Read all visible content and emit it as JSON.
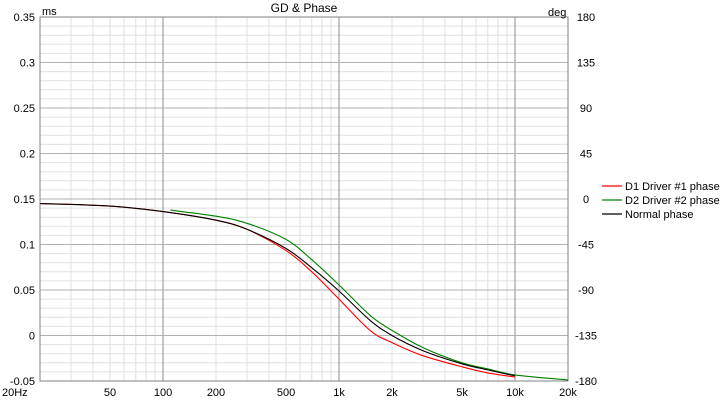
{
  "chart_data": {
    "type": "line",
    "title": "GD & Phase",
    "x_scale": "log",
    "xlim": [
      20,
      20000
    ],
    "x_ticks": [
      {
        "value": 20,
        "label": "20Hz"
      },
      {
        "value": 50,
        "label": "50"
      },
      {
        "value": 100,
        "label": "100"
      },
      {
        "value": 200,
        "label": "200"
      },
      {
        "value": 500,
        "label": "500"
      },
      {
        "value": 1000,
        "label": "1k"
      },
      {
        "value": 2000,
        "label": "2k"
      },
      {
        "value": 5000,
        "label": "5k"
      },
      {
        "value": 10000,
        "label": "10k"
      },
      {
        "value": 20000,
        "label": "20k"
      }
    ],
    "left_axis": {
      "unit": "ms",
      "ylim": [
        -0.05,
        0.35
      ],
      "ticks": [
        -0.05,
        0,
        0.05,
        0.1,
        0.15,
        0.2,
        0.25,
        0.3,
        0.35
      ],
      "tick_labels": [
        "-0.05",
        "0",
        "0.05",
        "0.1",
        "0.15",
        "0.2",
        "0.25",
        "0.3",
        "0.35"
      ]
    },
    "right_axis": {
      "unit": "deg",
      "ylim": [
        -180,
        180
      ],
      "ticks": [
        -180,
        -135,
        -90,
        -45,
        0,
        45,
        90,
        135,
        180
      ],
      "tick_labels": [
        "-180",
        "-135",
        "-90",
        "-45",
        "0",
        "45",
        "90",
        "135",
        "180"
      ]
    },
    "grid": true,
    "legend_position": "right",
    "series": [
      {
        "name": "D1 Driver #1 phase",
        "color": "#ff0000",
        "axis": "right",
        "x": [
          20,
          50,
          100,
          200,
          300,
          500,
          700,
          1000,
          1500,
          2000,
          3000,
          5000,
          7000,
          10000
        ],
        "y": [
          -4.5,
          -7,
          -12.5,
          -21,
          -30,
          -51,
          -72,
          -99,
          -130,
          -142,
          -155,
          -166,
          -172,
          -176
        ]
      },
      {
        "name": "D2 Driver #2 phase",
        "color": "#008000",
        "axis": "right",
        "x": [
          110,
          200,
          300,
          500,
          700,
          1000,
          1500,
          2000,
          3000,
          5000,
          7000,
          10000,
          20000
        ],
        "y": [
          -11,
          -17,
          -24,
          -40,
          -60,
          -85,
          -115,
          -130,
          -147,
          -162,
          -168,
          -174,
          -179
        ]
      },
      {
        "name": "Normal phase",
        "color": "#000000",
        "axis": "right",
        "x": [
          20,
          50,
          100,
          200,
          300,
          500,
          700,
          1000,
          1500,
          2000,
          3000,
          5000,
          7000,
          10000
        ],
        "y": [
          -4.5,
          -7,
          -12.5,
          -21,
          -30,
          -49,
          -68,
          -91,
          -120,
          -135,
          -150,
          -163,
          -169,
          -175
        ]
      }
    ]
  }
}
